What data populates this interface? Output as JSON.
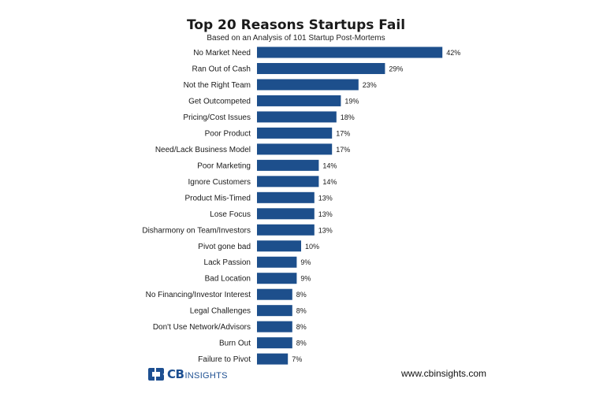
{
  "chart_data": {
    "type": "bar",
    "orientation": "horizontal",
    "title": "Top 20 Reasons Startups Fail",
    "subtitle": "Based on an Analysis of 101 Startup Post-Mortems",
    "categories": [
      "No Market Need",
      "Ran Out of Cash",
      "Not the Right Team",
      "Get Outcompeted",
      "Pricing/Cost Issues",
      "Poor Product",
      "Need/Lack Business Model",
      "Poor Marketing",
      "Ignore Customers",
      "Product Mis-Timed",
      "Lose Focus",
      "Disharmony on Team/Investors",
      "Pivot gone bad",
      "Lack Passion",
      "Bad Location",
      "No Financing/Investor Interest",
      "Legal Challenges",
      "Don't Use Network/Advisors",
      "Burn Out",
      "Failure to Pivot"
    ],
    "values": [
      42,
      29,
      23,
      19,
      18,
      17,
      17,
      14,
      14,
      13,
      13,
      13,
      10,
      9,
      9,
      8,
      8,
      8,
      8,
      7
    ],
    "value_suffix": "%",
    "bar_color": "#1d4f8c",
    "grid": false,
    "legend": "none"
  },
  "branding": {
    "logo_cb": "CB",
    "logo_insights": "INSIGHTS",
    "logo_color": "#1d4f91",
    "website": "www.cbinsights.com"
  }
}
